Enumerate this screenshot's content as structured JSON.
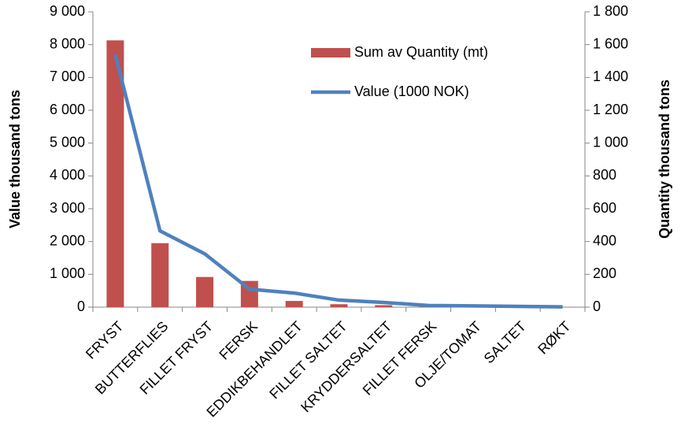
{
  "chart_data": {
    "type": "bar_line",
    "y_label": "Value thousand tons",
    "y2_label": "Quantity thousand tons",
    "categories": [
      "FRYST",
      "BUTTERFLIES",
      "FILLET FRYST",
      "FERSK",
      "EDDIKBEHANDLET",
      "FILLET SALTET",
      "KRYDDERSALTET",
      "FILLET FERSK",
      "OLJE/TOMAT",
      "SALTET",
      "RØKT"
    ],
    "series": [
      {
        "name": "Sum av Quantity (mt)",
        "type": "bar",
        "color": "#c0504d",
        "values": [
          8130,
          1950,
          920,
          800,
          190,
          90,
          60,
          20,
          15,
          10,
          5
        ]
      },
      {
        "name": "Value (1000 NOK)",
        "type": "line",
        "axis": "y2",
        "color": "#4f81bd",
        "values": [
          1540,
          465,
          325,
          110,
          86,
          43,
          29,
          10,
          8,
          5,
          2
        ]
      }
    ],
    "ylim": [
      0,
      9000
    ],
    "yticks": [
      0,
      {
        "value": 1000,
        "label": "1 000"
      },
      {
        "value": 2000,
        "label": "2 000"
      },
      {
        "value": 3000,
        "label": "3 000"
      },
      {
        "value": 4000,
        "label": "4 000"
      },
      {
        "value": 5000,
        "label": "5 000"
      },
      {
        "value": 6000,
        "label": "6 000"
      },
      {
        "value": 7000,
        "label": "7 000"
      },
      {
        "value": 8000,
        "label": "8 000"
      },
      {
        "value": 9000,
        "label": "9 000"
      }
    ],
    "y2lim": [
      0,
      1800
    ],
    "y2ticks": [
      0,
      200,
      400,
      600,
      800,
      {
        "value": 1000,
        "label": "1 000"
      },
      {
        "value": 1200,
        "label": "1 200"
      },
      {
        "value": 1400,
        "label": "1 400"
      },
      {
        "value": 1600,
        "label": "1 600"
      },
      {
        "value": 1800,
        "label": "1 800"
      }
    ]
  }
}
